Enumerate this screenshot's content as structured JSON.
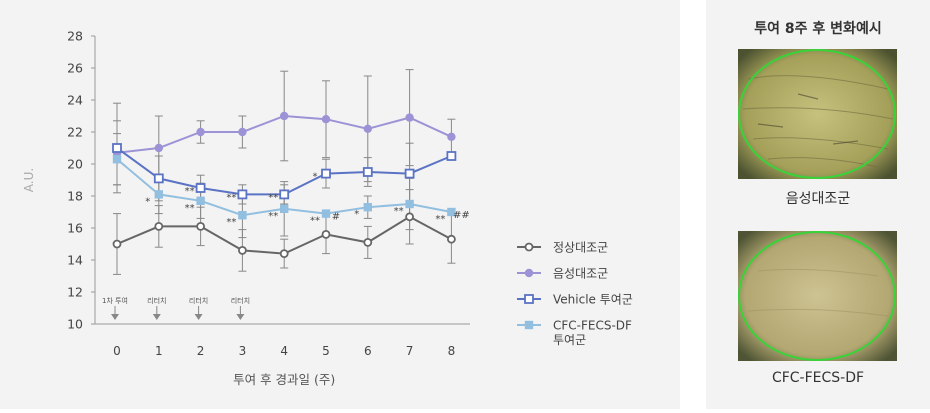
{
  "chart_data": {
    "type": "line",
    "x": [
      0,
      1,
      2,
      3,
      4,
      5,
      6,
      7,
      8
    ],
    "xlabel": "투여 후 경과일 (주)",
    "ylabel": "A.U.",
    "ylim": [
      10,
      28
    ],
    "yticks": [
      10,
      12,
      14,
      16,
      18,
      20,
      22,
      24,
      26,
      28
    ],
    "grid": false,
    "legend_position": "right",
    "series": [
      {
        "name": "정상대조군",
        "color": "#666666",
        "marker": "circle-open",
        "values": [
          15.0,
          16.1,
          16.1,
          14.6,
          14.4,
          15.6,
          15.1,
          16.7,
          15.3
        ],
        "errors": [
          1.9,
          1.3,
          1.2,
          1.3,
          0.9,
          1.2,
          1.0,
          1.7,
          1.5
        ]
      },
      {
        "name": "음성대조군",
        "color": "#9b93d6",
        "marker": "circle-filled",
        "values": [
          20.7,
          21.0,
          22.0,
          22.0,
          23.0,
          22.8,
          22.2,
          22.9,
          21.7
        ],
        "errors": [
          2.0,
          2.0,
          0.7,
          1.0,
          2.8,
          2.4,
          3.3,
          3.0,
          1.1
        ]
      },
      {
        "name": "Vehicle 투여군",
        "color": "#5a73c4",
        "marker": "square-open",
        "values": [
          21.0,
          19.1,
          18.5,
          18.1,
          18.1,
          19.4,
          19.5,
          19.4,
          20.5
        ],
        "errors": [
          2.8,
          1.4,
          0.8,
          0.6,
          0.6,
          0.9,
          0.9,
          1.9,
          0.0
        ]
      },
      {
        "name": "CFC-FECS-DF 투여군",
        "color": "#92bfe0",
        "marker": "square-filled",
        "values": [
          20.3,
          18.1,
          17.7,
          16.8,
          17.2,
          16.9,
          17.3,
          17.5,
          17.0
        ],
        "errors": [
          1.6,
          1.2,
          1.1,
          1.4,
          1.7,
          0.0,
          0.7,
          1.6,
          0.0
        ]
      }
    ],
    "annotations": [
      {
        "x": 1,
        "upper": "",
        "lower": "*"
      },
      {
        "x": 2,
        "upper": "**",
        "lower": "**"
      },
      {
        "x": 3,
        "upper": "**",
        "lower": "**"
      },
      {
        "x": 4,
        "upper": "**",
        "lower": "**"
      },
      {
        "x": 5,
        "upper": "*",
        "lower": "**",
        "right": "#"
      },
      {
        "x": 6,
        "upper": "",
        "lower": "*"
      },
      {
        "x": 7,
        "upper": "",
        "lower": "**"
      },
      {
        "x": 8,
        "upper": "",
        "lower": "**",
        "right": "##"
      }
    ],
    "dose_markers": [
      {
        "x": 0,
        "label": "1차 투여"
      },
      {
        "x": 1,
        "label": "리터치"
      },
      {
        "x": 2,
        "label": "리터치"
      },
      {
        "x": 3,
        "label": "리터치"
      }
    ]
  },
  "legend": {
    "items": [
      {
        "label": "정상대조군",
        "color": "#666666",
        "marker": "circle-open"
      },
      {
        "label": "음성대조군",
        "color": "#9b93d6",
        "marker": "circle-filled"
      },
      {
        "label": "Vehicle 투여군",
        "color": "#5a73c4",
        "marker": "square-open"
      },
      {
        "label_line1": "CFC-FECS-DF",
        "label_line2": "투여군",
        "color": "#92bfe0",
        "marker": "square-filled"
      }
    ]
  },
  "example_panel": {
    "title": "투여 8주 후 변화예시",
    "images": [
      {
        "caption": "음성대조군",
        "tone": "#aaa864"
      },
      {
        "caption": "CFC-FECS-DF",
        "tone": "#b9ae7c"
      }
    ]
  }
}
